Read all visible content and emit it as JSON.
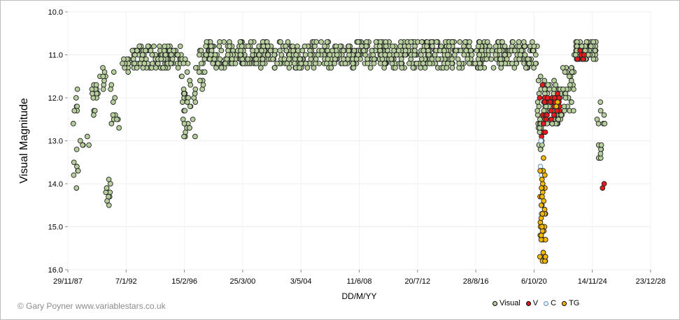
{
  "chart_data": {
    "type": "scatter",
    "title": "",
    "xlabel": "DD/M/YY",
    "ylabel": "Visual Magnitude",
    "y_inverted": true,
    "ylim": [
      10.0,
      16.0
    ],
    "yticks": [
      "10.0",
      "11.0",
      "12.0",
      "13.0",
      "14.0",
      "15.0",
      "16.0"
    ],
    "xlim": [
      "1987-11-29",
      "2028-12-23"
    ],
    "xticks": [
      "29/11/87",
      "7/1/92",
      "15/2/96",
      "25/3/00",
      "3/5/04",
      "11/6/08",
      "20/7/12",
      "28/8/16",
      "6/10/20",
      "14/11/24",
      "23/12/28"
    ],
    "grid": true,
    "legend_position": "bottom-right",
    "colors": {
      "Visual": "#b7cf9d",
      "V": "#e41a1c",
      "C": "#e8f1fb",
      "TG": "#f5b800"
    },
    "series": [
      {
        "name": "Visual",
        "segments": [
          {
            "from": "1988-04-01",
            "to": "1988-09-01",
            "ymin": 11.3,
            "ymax": 14.1,
            "n": 14
          },
          {
            "from": "1988-09-01",
            "to": "1989-06-01",
            "ymin": 12.8,
            "ymax": 13.4,
            "n": 5
          },
          {
            "from": "1989-06-01",
            "to": "1990-03-01",
            "ymin": 11.7,
            "ymax": 12.4,
            "n": 14
          },
          {
            "from": "1990-03-01",
            "to": "1990-09-01",
            "ymin": 11.2,
            "ymax": 11.8,
            "n": 8
          },
          {
            "from": "1990-08-01",
            "to": "1990-12-01",
            "ymin": 13.4,
            "ymax": 14.7,
            "n": 10
          },
          {
            "from": "1990-12-01",
            "to": "1991-09-01",
            "ymin": 11.4,
            "ymax": 12.7,
            "n": 12
          },
          {
            "from": "1991-09-01",
            "to": "1992-06-01",
            "ymin": 11.0,
            "ymax": 11.4,
            "n": 10
          },
          {
            "from": "1992-06-01",
            "to": "1995-12-01",
            "ymin": 10.8,
            "ymax": 11.3,
            "n": 120
          },
          {
            "from": "1995-12-01",
            "to": "1996-06-01",
            "ymin": 11.0,
            "ymax": 13.0,
            "n": 26
          },
          {
            "from": "1996-06-01",
            "to": "1996-12-01",
            "ymin": 11.6,
            "ymax": 12.9,
            "n": 12
          },
          {
            "from": "1996-12-01",
            "to": "1997-08-01",
            "ymin": 10.9,
            "ymax": 11.9,
            "n": 16
          },
          {
            "from": "1997-08-01",
            "to": "2021-01-01",
            "ymin": 10.7,
            "ymax": 11.3,
            "n": 780
          },
          {
            "from": "2021-01-01",
            "to": "2021-06-01",
            "ymin": 11.5,
            "ymax": 13.2,
            "n": 22
          },
          {
            "from": "2021-06-01",
            "to": "2022-10-01",
            "ymin": 11.6,
            "ymax": 12.6,
            "n": 60
          },
          {
            "from": "2022-10-01",
            "to": "2023-08-01",
            "ymin": 11.3,
            "ymax": 12.4,
            "n": 30
          },
          {
            "from": "2023-08-01",
            "to": "2025-03-01",
            "ymin": 10.7,
            "ymax": 11.1,
            "n": 60
          },
          {
            "from": "2025-03-01",
            "to": "2025-10-01",
            "ymin": 11.9,
            "ymax": 13.4,
            "n": 14
          }
        ]
      },
      {
        "name": "V",
        "segments": [
          {
            "from": "2021-01-01",
            "to": "2021-08-01",
            "ymin": 11.7,
            "ymax": 13.0,
            "n": 14
          },
          {
            "from": "2021-08-01",
            "to": "2022-08-01",
            "ymin": 11.9,
            "ymax": 12.6,
            "n": 26
          },
          {
            "from": "2023-10-01",
            "to": "2024-05-01",
            "ymin": 10.9,
            "ymax": 11.1,
            "n": 8
          },
          {
            "from": "2025-08-01",
            "to": "2025-11-01",
            "ymin": 13.9,
            "ymax": 14.1,
            "n": 2
          }
        ]
      },
      {
        "name": "C",
        "segments": [
          {
            "from": "2021-02-01",
            "to": "2021-05-01",
            "ymin": 12.8,
            "ymax": 15.0,
            "n": 4
          }
        ]
      },
      {
        "name": "TG",
        "segments": [
          {
            "from": "2021-03-01",
            "to": "2021-08-01",
            "ymin": 13.4,
            "ymax": 15.9,
            "n": 44
          },
          {
            "from": "2022-04-01",
            "to": "2022-09-01",
            "ymin": 12.0,
            "ymax": 12.2,
            "n": 3
          }
        ]
      }
    ]
  },
  "footer": {
    "credit": "© Gary Poyner www.variablestars.co.uk"
  },
  "legend": {
    "items": [
      {
        "label": "Visual",
        "color": "#b7cf9d"
      },
      {
        "label": "V",
        "color": "#e41a1c"
      },
      {
        "label": "C",
        "color": "#e8f1fb"
      },
      {
        "label": "TG",
        "color": "#f5b800"
      }
    ]
  }
}
